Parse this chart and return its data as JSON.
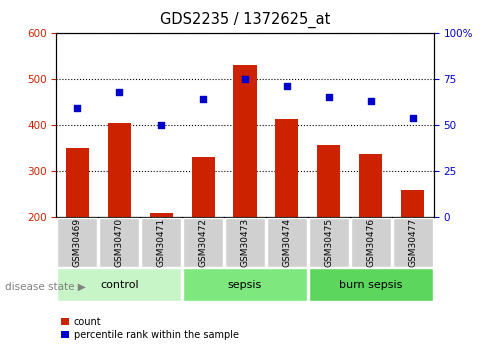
{
  "title": "GDS2235 / 1372625_at",
  "samples": [
    "GSM30469",
    "GSM30470",
    "GSM30471",
    "GSM30472",
    "GSM30473",
    "GSM30474",
    "GSM30475",
    "GSM30476",
    "GSM30477"
  ],
  "counts": [
    350,
    405,
    210,
    330,
    530,
    413,
    357,
    338,
    260
  ],
  "percentile_ranks": [
    59,
    68,
    50,
    64,
    75,
    71,
    65,
    63,
    54
  ],
  "bar_color": "#cc2200",
  "dot_color": "#0000cc",
  "ylim_left": [
    200,
    600
  ],
  "ylim_right": [
    0,
    100
  ],
  "yticks_left": [
    200,
    300,
    400,
    500,
    600
  ],
  "yticks_right": [
    0,
    25,
    50,
    75,
    100
  ],
  "left_tick_color": "#cc2200",
  "right_tick_color": "#0000cc",
  "group_labels": [
    "control",
    "sepsis",
    "burn sepsis"
  ],
  "group_ranges": [
    [
      0,
      2
    ],
    [
      3,
      5
    ],
    [
      6,
      8
    ]
  ],
  "group_colors": [
    "#c8f5c8",
    "#7ee87e",
    "#5cd65c"
  ],
  "label_bg_color": "#d0d0d0",
  "legend_count_label": "count",
  "legend_percentile_label": "percentile rank within the sample",
  "disease_state_label": "disease state"
}
